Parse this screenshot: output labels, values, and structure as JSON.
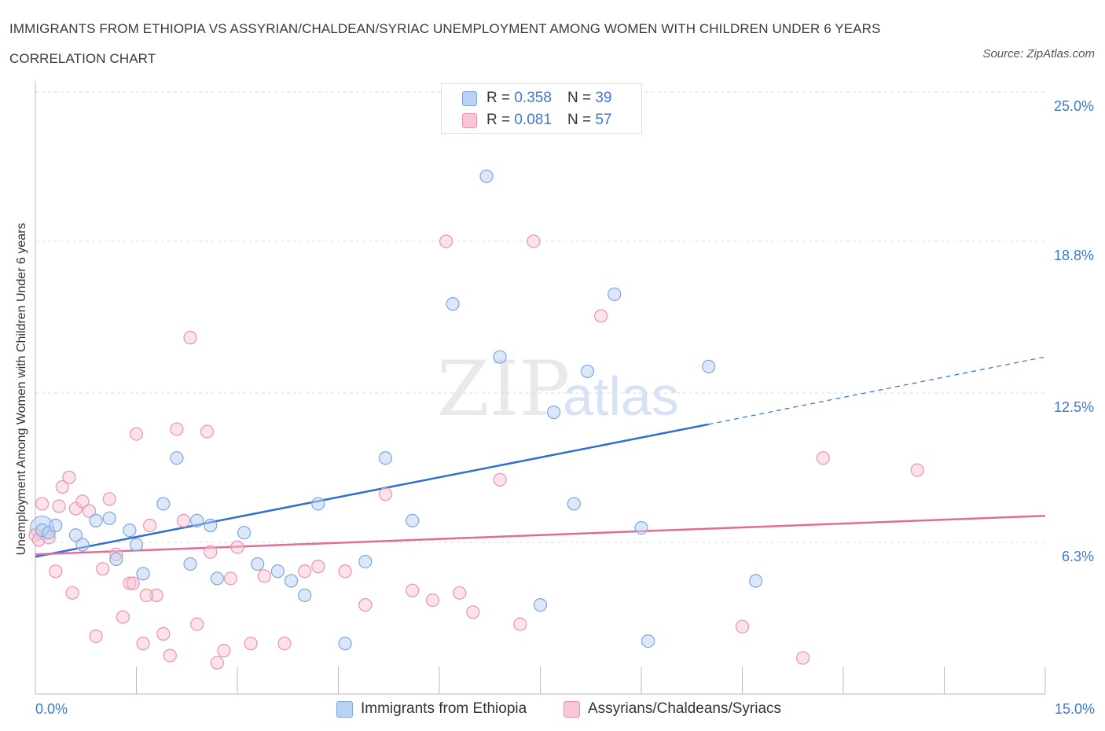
{
  "header": {
    "title": "IMMIGRANTS FROM ETHIOPIA VS ASSYRIAN/CHALDEAN/SYRIAC UNEMPLOYMENT AMONG WOMEN WITH CHILDREN UNDER 6 YEARS CORRELATION CHART",
    "source": "Source: ZipAtlas.com"
  },
  "watermark": {
    "zip": "ZIP",
    "atlas": "atlas"
  },
  "legend": {
    "rows": [
      {
        "r_label": "R =",
        "r_value": "0.358",
        "n_label": "N =",
        "n_value": "39"
      },
      {
        "r_label": "R =",
        "r_value": "0.081",
        "n_label": "N =",
        "n_value": "57"
      }
    ]
  },
  "colors": {
    "blue_fill": "#b9d1f4",
    "blue_stroke": "#7ea5de",
    "blue_line": "#2f6fd0",
    "pink_fill": "#f9c6d6",
    "pink_stroke": "#e994b0",
    "pink_line": "#e26b98",
    "axis_text": "#3d78cf",
    "grid": "#dddddd"
  },
  "chart_data": {
    "type": "scatter",
    "title": "IMMIGRANTS FROM ETHIOPIA VS ASSYRIAN/CHALDEAN/SYRIAC UNEMPLOYMENT AMONG WOMEN WITH CHILDREN UNDER 6 YEARS CORRELATION CHART",
    "xlabel": "",
    "ylabel": "Unemployment Among Women with Children Under 6 years",
    "xlim": [
      0,
      15
    ],
    "ylim": [
      0,
      25
    ],
    "x_tick_labels": [
      "0.0%",
      "15.0%"
    ],
    "y_ticks": [
      6.3,
      12.5,
      18.8,
      25.0
    ],
    "y_tick_labels": [
      "6.3%",
      "12.5%",
      "18.8%",
      "25.0%"
    ],
    "grid": "horizontal dashed",
    "legend_position": "top-center and bottom",
    "series": [
      {
        "name": "Immigrants from Ethiopia",
        "color": "#b9d1f4",
        "r": 0.358,
        "n": 39,
        "trend": {
          "x": [
            0,
            10
          ],
          "y": [
            5.7,
            11.2
          ],
          "dashed_extension_to": [
            15,
            14.0
          ]
        },
        "points": [
          [
            0.1,
            6.8
          ],
          [
            0.2,
            6.7
          ],
          [
            0.3,
            7.0
          ],
          [
            0.6,
            6.6
          ],
          [
            0.7,
            6.2
          ],
          [
            0.9,
            7.2
          ],
          [
            1.1,
            7.3
          ],
          [
            1.2,
            5.6
          ],
          [
            1.4,
            6.8
          ],
          [
            1.5,
            6.2
          ],
          [
            1.6,
            5.0
          ],
          [
            1.9,
            7.9
          ],
          [
            2.1,
            9.8
          ],
          [
            2.3,
            5.4
          ],
          [
            2.4,
            7.2
          ],
          [
            2.6,
            7.0
          ],
          [
            2.7,
            4.8
          ],
          [
            3.1,
            6.7
          ],
          [
            3.3,
            5.4
          ],
          [
            3.6,
            5.1
          ],
          [
            3.8,
            4.7
          ],
          [
            4.0,
            4.1
          ],
          [
            4.2,
            7.9
          ],
          [
            4.6,
            2.1
          ],
          [
            4.9,
            5.5
          ],
          [
            5.2,
            9.8
          ],
          [
            5.6,
            7.2
          ],
          [
            6.2,
            16.2
          ],
          [
            6.7,
            21.5
          ],
          [
            6.9,
            14.0
          ],
          [
            7.5,
            3.7
          ],
          [
            7.7,
            11.7
          ],
          [
            8.0,
            7.9
          ],
          [
            8.2,
            13.4
          ],
          [
            8.6,
            16.6
          ],
          [
            9.0,
            6.9
          ],
          [
            9.1,
            2.2
          ],
          [
            10.0,
            13.6
          ],
          [
            10.7,
            4.7
          ]
        ]
      },
      {
        "name": "Assyrians/Chaldeans/Syriacs",
        "color": "#f9c6d6",
        "r": 0.081,
        "n": 57,
        "trend": {
          "x": [
            0,
            15
          ],
          "y": [
            5.8,
            7.4
          ]
        },
        "points": [
          [
            0.0,
            6.6
          ],
          [
            0.05,
            6.4
          ],
          [
            0.1,
            7.9
          ],
          [
            0.2,
            6.5
          ],
          [
            0.3,
            5.1
          ],
          [
            0.4,
            8.6
          ],
          [
            0.5,
            9.0
          ],
          [
            0.55,
            4.2
          ],
          [
            0.6,
            7.7
          ],
          [
            0.7,
            8.0
          ],
          [
            0.8,
            7.6
          ],
          [
            0.9,
            2.4
          ],
          [
            1.0,
            5.2
          ],
          [
            1.1,
            8.1
          ],
          [
            1.2,
            5.8
          ],
          [
            1.3,
            3.2
          ],
          [
            1.4,
            4.6
          ],
          [
            1.5,
            10.8
          ],
          [
            1.6,
            2.1
          ],
          [
            1.7,
            7.0
          ],
          [
            1.8,
            4.1
          ],
          [
            1.9,
            2.5
          ],
          [
            2.0,
            1.6
          ],
          [
            2.1,
            11.0
          ],
          [
            2.2,
            7.2
          ],
          [
            2.3,
            14.8
          ],
          [
            2.4,
            2.9
          ],
          [
            2.55,
            10.9
          ],
          [
            2.6,
            5.9
          ],
          [
            2.7,
            1.3
          ],
          [
            2.8,
            1.8
          ],
          [
            2.9,
            4.8
          ],
          [
            3.0,
            6.1
          ],
          [
            3.2,
            2.1
          ],
          [
            3.4,
            4.9
          ],
          [
            3.7,
            2.1
          ],
          [
            4.0,
            5.1
          ],
          [
            4.2,
            5.3
          ],
          [
            4.6,
            5.1
          ],
          [
            4.9,
            3.7
          ],
          [
            5.2,
            8.3
          ],
          [
            5.6,
            4.3
          ],
          [
            5.9,
            3.9
          ],
          [
            6.1,
            18.8
          ],
          [
            6.3,
            4.2
          ],
          [
            6.5,
            3.4
          ],
          [
            6.9,
            8.9
          ],
          [
            7.2,
            2.9
          ],
          [
            7.4,
            18.8
          ],
          [
            8.4,
            15.7
          ],
          [
            10.5,
            2.8
          ],
          [
            11.4,
            1.5
          ],
          [
            11.7,
            9.8
          ],
          [
            13.1,
            9.3
          ],
          [
            0.35,
            7.8
          ],
          [
            1.45,
            4.6
          ],
          [
            1.65,
            4.1
          ]
        ]
      }
    ]
  }
}
